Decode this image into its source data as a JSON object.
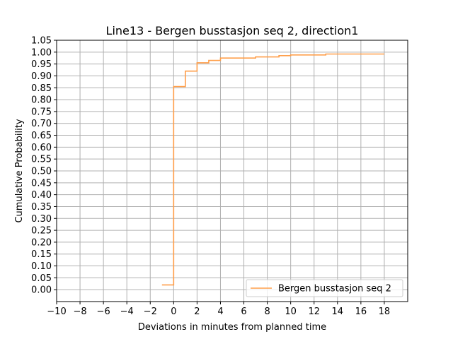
{
  "chart_data": {
    "type": "line",
    "step": true,
    "title": "Line13 - Bergen busstasjon seq 2, direction1",
    "xlabel": "Deviations in minutes from planned time",
    "ylabel": "Cumulative Probability",
    "xlim": [
      -10,
      20
    ],
    "ylim": [
      -0.05,
      1.05
    ],
    "xticks": [
      -10,
      -8,
      -6,
      -4,
      -2,
      0,
      2,
      4,
      6,
      8,
      10,
      12,
      14,
      16,
      18
    ],
    "xtick_labels": [
      "−10",
      "−8",
      "−6",
      "−4",
      "−2",
      "0",
      "2",
      "4",
      "6",
      "8",
      "10",
      "12",
      "14",
      "16",
      "18"
    ],
    "yticks": [
      0.0,
      0.05,
      0.1,
      0.15,
      0.2,
      0.25,
      0.3,
      0.35,
      0.4,
      0.45,
      0.5,
      0.55,
      0.6,
      0.65,
      0.7,
      0.75,
      0.8,
      0.85,
      0.9,
      0.95,
      1.0,
      1.05
    ],
    "ytick_labels": [
      "0.00",
      "0.05",
      "0.10",
      "0.15",
      "0.20",
      "0.25",
      "0.30",
      "0.35",
      "0.40",
      "0.45",
      "0.50",
      "0.55",
      "0.60",
      "0.65",
      "0.70",
      "0.75",
      "0.80",
      "0.85",
      "0.90",
      "0.95",
      "1.00",
      "1.05"
    ],
    "grid": true,
    "legend_position": "lower-right",
    "series": [
      {
        "name": "Bergen busstasjon seq 2",
        "color": "#ff9f4a",
        "x": [
          -1,
          0,
          0,
          1,
          1,
          2,
          2,
          3,
          3,
          4,
          4,
          7,
          7,
          9,
          9,
          10,
          10,
          13,
          13,
          18
        ],
        "y": [
          0.02,
          0.02,
          0.855,
          0.855,
          0.92,
          0.92,
          0.955,
          0.955,
          0.965,
          0.965,
          0.975,
          0.975,
          0.98,
          0.98,
          0.985,
          0.985,
          0.988,
          0.988,
          0.992,
          0.992
        ]
      }
    ]
  }
}
